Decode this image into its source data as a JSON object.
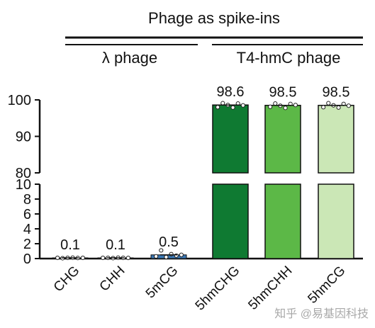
{
  "chart_data": {
    "type": "bar",
    "title": "Phage as spike-ins",
    "groups": [
      {
        "label": "λ phage",
        "categories": [
          "CHG",
          "CHH",
          "5mCG"
        ]
      },
      {
        "label": "T4-hmC phage",
        "categories": [
          "5hmCHG",
          "5hmCHH",
          "5hmCG"
        ]
      }
    ],
    "categories": [
      "CHG",
      "CHH",
      "5mCG",
      "5hmCHG",
      "5hmCHH",
      "5hmCG"
    ],
    "values": [
      0.1,
      0.1,
      0.5,
      98.6,
      98.5,
      98.5
    ],
    "value_labels": [
      "0.1",
      "0.1",
      "0.5",
      "98.6",
      "98.5",
      "98.5"
    ],
    "replicates": [
      [
        0.1,
        0.05,
        0.1,
        0.12,
        0.08,
        0.1
      ],
      [
        0.1,
        0.1,
        0.06,
        0.12,
        0.1,
        0.09
      ],
      [
        0.3,
        1.1,
        0.2,
        0.6,
        0.4,
        0.5
      ],
      [
        98.0,
        99.1,
        98.6,
        97.9,
        99.0,
        98.5
      ],
      [
        98.1,
        99.0,
        98.4,
        97.8,
        98.9,
        98.6
      ],
      [
        98.0,
        99.1,
        98.5,
        97.9,
        98.9,
        98.4
      ]
    ],
    "colors": [
      "#8a8a8a",
      "#8a8a8a",
      "#3a77b3",
      "#0f7a32",
      "#5cb847",
      "#cbe7b6"
    ],
    "y_axis": {
      "broken": true,
      "upper_segment": {
        "range": [
          80,
          100
        ],
        "ticks": [
          "80",
          "90",
          "100"
        ]
      },
      "lower_segment": {
        "range": [
          0,
          10
        ],
        "ticks": [
          "0",
          "2",
          "4",
          "6",
          "8",
          "10"
        ]
      }
    },
    "xlabel": "",
    "ylabel": ""
  },
  "watermark": "知乎 @易基因科技"
}
